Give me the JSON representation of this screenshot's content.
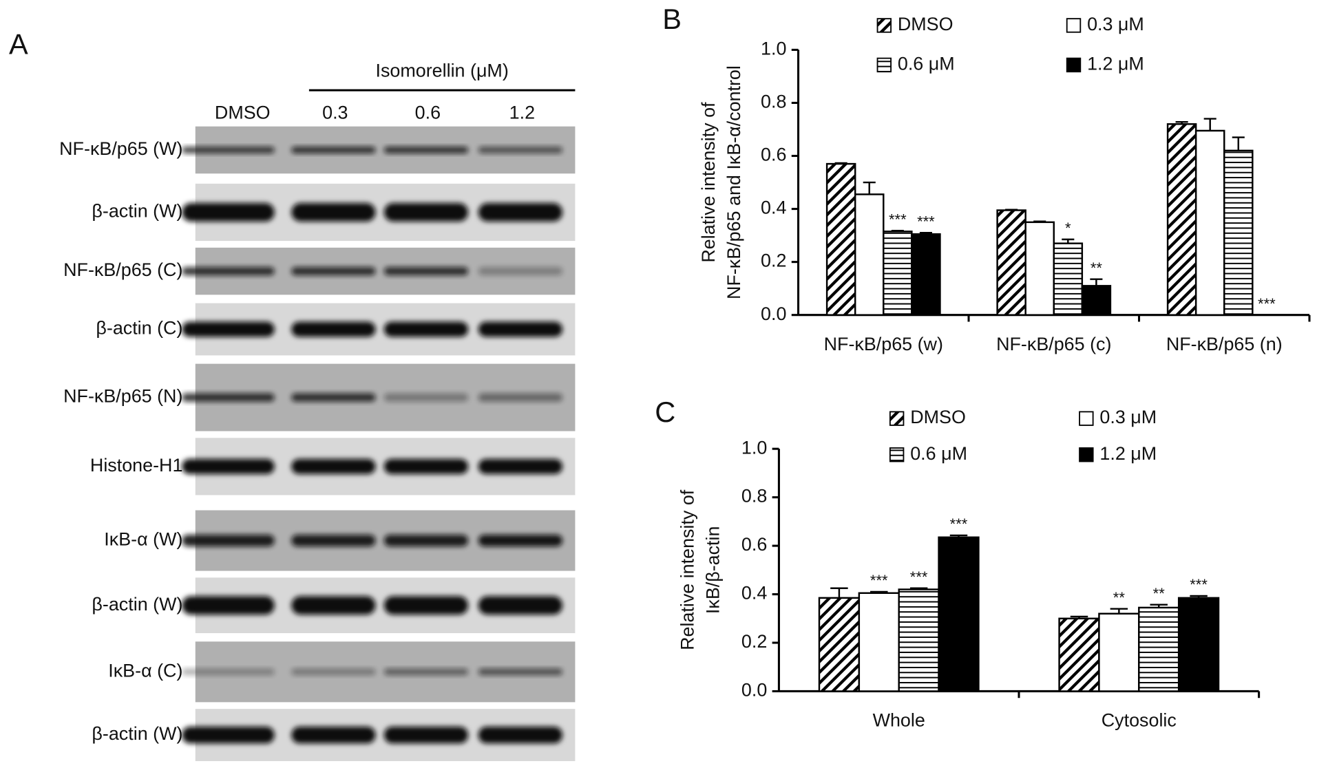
{
  "panel_labels": [
    "A",
    "B",
    "C"
  ],
  "blot": {
    "header": "Isomorellin (μM)",
    "lanes": [
      "DMSO",
      "0.3",
      "0.6",
      "1.2"
    ],
    "rows": [
      "NF-κB/p65 (W)",
      "β-actin (W)",
      "NF-κB/p65 (C)",
      "β-actin (C)",
      "NF-κB/p65 (N)",
      "Histone-H1",
      "IκB-α (W)",
      "β-actin (W)",
      "IκB-α (C)",
      "β-actin (W)"
    ]
  },
  "chart_data": [
    {
      "type": "bar",
      "ylabel": [
        "Relative intensity of",
        "NF-κB/p65 and IκB-α/control"
      ],
      "categories": [
        "NF-κB/p65 (w)",
        "NF-κB/p65 (c)",
        "NF-κB/p65 (n)"
      ],
      "series": [
        {
          "name": "DMSO",
          "color": "#000000",
          "pattern": "diagonal",
          "values": [
            0.57,
            0.395,
            0.72
          ],
          "errors": [
            0.003,
            0.002,
            0.008
          ]
        },
        {
          "name": "0.3 μM",
          "color": "#000000",
          "pattern": "none",
          "values": [
            0.455,
            0.35,
            0.695
          ],
          "errors": [
            0.045,
            0.003,
            0.045
          ]
        },
        {
          "name": "0.6 μM",
          "color": "#000000",
          "pattern": "horizontal",
          "values": [
            0.315,
            0.27,
            0.62
          ],
          "errors": [
            0.003,
            0.015,
            0.05
          ],
          "significance": [
            "***",
            "*",
            null
          ]
        },
        {
          "name": "1.2 μM",
          "color": "#000000",
          "pattern": "solid",
          "values": [
            0.305,
            0.11,
            0
          ],
          "errors": [
            0.005,
            0.025,
            0
          ],
          "significance": [
            "***",
            "**",
            "***"
          ]
        }
      ],
      "ylim": [
        0,
        1.0
      ],
      "yticks": [
        {
          "value": 0,
          "label": "0.0"
        },
        0.2,
        0.4,
        0.6,
        0.8,
        {
          "value": 1,
          "label": "1.0"
        }
      ],
      "legend": "top"
    },
    {
      "type": "bar",
      "ylabel": [
        "Relative intensity of",
        "IκB/β-actin"
      ],
      "categories": [
        "Whole",
        "Cytosolic"
      ],
      "series": [
        {
          "name": "DMSO",
          "color": "#000000",
          "pattern": "diagonal",
          "values": [
            0.385,
            0.3
          ],
          "errors": [
            0.04,
            0.008
          ]
        },
        {
          "name": "0.3 μM",
          "color": "#000000",
          "pattern": "none",
          "values": [
            0.405,
            0.32
          ],
          "errors": [
            0.005,
            0.02
          ],
          "significance": [
            "***",
            "**"
          ]
        },
        {
          "name": "0.6 μM",
          "color": "#000000",
          "pattern": "horizontal",
          "values": [
            0.42,
            0.345
          ],
          "errors": [
            0.005,
            0.012
          ],
          "significance": [
            "***",
            "**"
          ]
        },
        {
          "name": "1.2 μM",
          "color": "#000000",
          "pattern": "solid",
          "values": [
            0.635,
            0.385
          ],
          "errors": [
            0.008,
            0.008
          ],
          "significance": [
            "***",
            "***"
          ]
        }
      ],
      "ylim": [
        0,
        1.0
      ],
      "yticks": [
        {
          "value": 0,
          "label": "0.0"
        },
        0.2,
        0.4,
        0.6,
        0.8,
        {
          "value": 1,
          "label": "1.0"
        }
      ],
      "legend": "top"
    }
  ]
}
